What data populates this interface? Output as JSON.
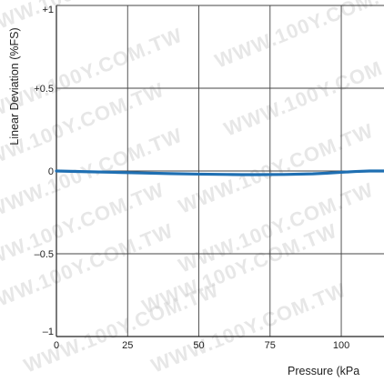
{
  "chart_data": {
    "type": "line",
    "xlabel": "Pressure (kPa",
    "ylabel": "Linear Deviation (%FS)",
    "xlim": [
      0,
      115
    ],
    "ylim": [
      -1,
      1
    ],
    "x_ticks": [
      {
        "value": 0,
        "label": "0"
      },
      {
        "value": 25,
        "label": "25"
      },
      {
        "value": 50,
        "label": "50"
      },
      {
        "value": 75,
        "label": "75"
      },
      {
        "value": 100,
        "label": "100"
      }
    ],
    "y_ticks": [
      {
        "value": 1,
        "label": "+1"
      },
      {
        "value": 0.5,
        "label": "+0.5"
      },
      {
        "value": 0,
        "label": "0"
      },
      {
        "value": -0.5,
        "label": "–0.5"
      },
      {
        "value": -1,
        "label": "–1"
      }
    ],
    "grid": true,
    "series": [
      {
        "x": [
          0,
          10,
          20,
          30,
          40,
          50,
          60,
          65,
          70,
          80,
          90,
          95,
          100,
          105,
          110,
          115
        ],
        "y": [
          0.0,
          -0.004,
          -0.008,
          -0.012,
          -0.016,
          -0.019,
          -0.021,
          -0.022,
          -0.022,
          -0.021,
          -0.017,
          -0.013,
          -0.008,
          -0.003,
          0.0,
          0.0
        ],
        "color": "#1f6fb2"
      }
    ],
    "watermark": "WWW.100Y.COM.TW"
  }
}
